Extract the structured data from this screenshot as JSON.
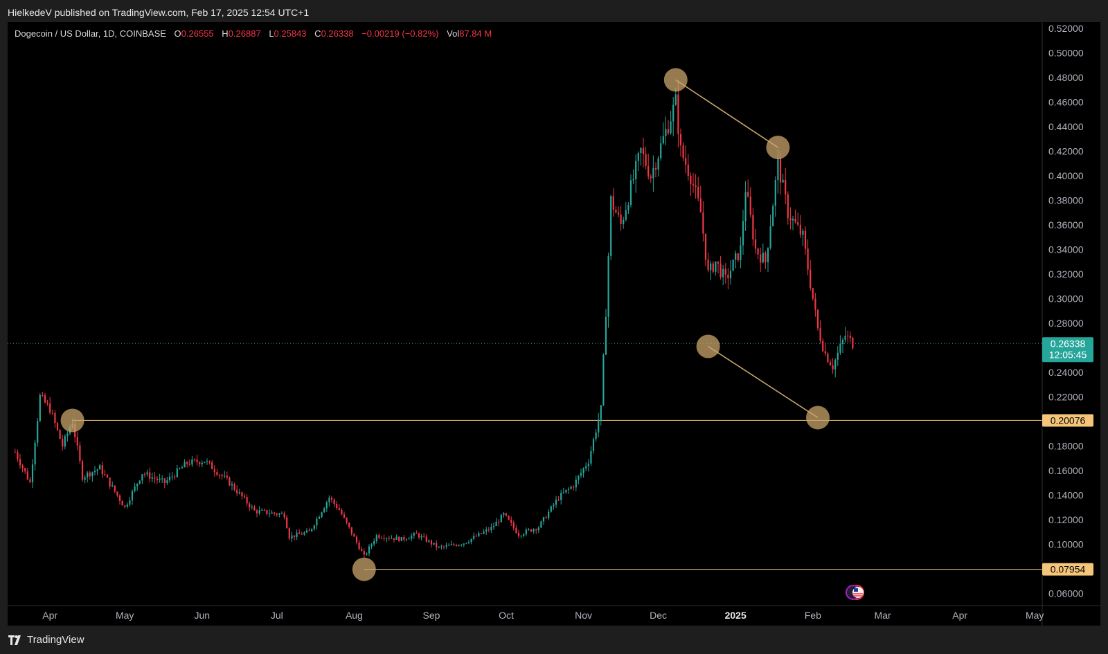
{
  "header": {
    "published_text": "HielkedeV published on TradingView.com, Feb 17, 2025 12:54 UTC+1"
  },
  "legend": {
    "symbol": "Dogecoin / US Dollar, 1D, COINBASE",
    "open_label": "O",
    "open_value": "0.26555",
    "high_label": "H",
    "high_value": "0.26887",
    "low_label": "L",
    "low_value": "0.25843",
    "close_label": "C",
    "close_value": "0.26338",
    "change_value": "−0.00219 (−0.82%)",
    "volume_label": "Vol",
    "volume_value": "87.84 M"
  },
  "footer": {
    "brand": "TradingView",
    "logo_icon": "tradingview-logo-icon"
  },
  "colors": {
    "up": "#26a69a",
    "down": "#f23645",
    "annotation": "#c9a46b",
    "level_line": "#e0b46a",
    "axis_text": "#b2b5be",
    "price_tag": "#26a69a",
    "level_tag": "#f5c57a"
  },
  "chart_data": {
    "type": "candlestick",
    "x_axis_labels": [
      "Apr",
      "May",
      "Jun",
      "Jul",
      "Aug",
      "Sep",
      "Oct",
      "Nov",
      "Dec",
      "2025",
      "Feb",
      "Mar",
      "Apr",
      "May"
    ],
    "y_axis_labels": [
      "0.52000",
      "0.50000",
      "0.48000",
      "0.46000",
      "0.44000",
      "0.42000",
      "0.40000",
      "0.38000",
      "0.36000",
      "0.34000",
      "0.32000",
      "0.30000",
      "0.28000",
      "0.26000",
      "0.24000",
      "0.22000",
      "0.20000",
      "0.18000",
      "0.16000",
      "0.14000",
      "0.12000",
      "0.10000",
      "0.08000",
      "0.06000"
    ],
    "ylim": [
      0.05,
      0.525
    ],
    "last_price": {
      "value": 0.26338,
      "label": "0.26338",
      "countdown": "12:05:45"
    },
    "levels": [
      {
        "value": 0.20076,
        "label": "0.20076"
      },
      {
        "value": 0.07954,
        "label": "0.07954"
      }
    ],
    "price_path": [
      [
        "2024-03-18",
        0.175
      ],
      [
        "2024-03-24",
        0.15
      ],
      [
        "2024-03-28",
        0.22
      ],
      [
        "2024-04-01",
        0.21
      ],
      [
        "2024-04-06",
        0.18
      ],
      [
        "2024-04-10",
        0.2
      ],
      [
        "2024-04-14",
        0.155
      ],
      [
        "2024-04-21",
        0.162
      ],
      [
        "2024-05-01",
        0.13
      ],
      [
        "2024-05-08",
        0.158
      ],
      [
        "2024-05-17",
        0.15
      ],
      [
        "2024-05-26",
        0.166
      ],
      [
        "2024-06-02",
        0.168
      ],
      [
        "2024-06-12",
        0.15
      ],
      [
        "2024-06-22",
        0.127
      ],
      [
        "2024-07-04",
        0.124
      ],
      [
        "2024-07-06",
        0.106
      ],
      [
        "2024-07-14",
        0.11
      ],
      [
        "2024-07-22",
        0.138
      ],
      [
        "2024-07-26",
        0.128
      ],
      [
        "2024-08-05",
        0.09
      ],
      [
        "2024-08-10",
        0.107
      ],
      [
        "2024-08-20",
        0.104
      ],
      [
        "2024-08-26",
        0.108
      ],
      [
        "2024-09-04",
        0.097
      ],
      [
        "2024-09-14",
        0.101
      ],
      [
        "2024-09-25",
        0.113
      ],
      [
        "2024-09-30",
        0.124
      ],
      [
        "2024-10-06",
        0.108
      ],
      [
        "2024-10-14",
        0.114
      ],
      [
        "2024-10-22",
        0.138
      ],
      [
        "2024-10-28",
        0.148
      ],
      [
        "2024-11-03",
        0.168
      ],
      [
        "2024-11-08",
        0.21
      ],
      [
        "2024-11-10",
        0.29
      ],
      [
        "2024-11-12",
        0.38
      ],
      [
        "2024-11-16",
        0.36
      ],
      [
        "2024-11-20",
        0.39
      ],
      [
        "2024-11-24",
        0.42
      ],
      [
        "2024-11-28",
        0.4
      ],
      [
        "2024-12-03",
        0.43
      ],
      [
        "2024-12-08",
        0.46
      ],
      [
        "2024-12-10",
        0.42
      ],
      [
        "2024-12-14",
        0.4
      ],
      [
        "2024-12-18",
        0.37
      ],
      [
        "2024-12-21",
        0.32
      ],
      [
        "2024-12-24",
        0.33
      ],
      [
        "2024-12-28",
        0.315
      ],
      [
        "2025-01-03",
        0.34
      ],
      [
        "2025-01-05",
        0.39
      ],
      [
        "2025-01-09",
        0.34
      ],
      [
        "2025-01-13",
        0.33
      ],
      [
        "2025-01-18",
        0.41
      ],
      [
        "2025-01-22",
        0.37
      ],
      [
        "2025-01-28",
        0.35
      ],
      [
        "2025-02-01",
        0.3
      ],
      [
        "2025-02-03",
        0.275
      ],
      [
        "2025-02-06",
        0.255
      ],
      [
        "2025-02-09",
        0.245
      ],
      [
        "2025-02-14",
        0.27
      ],
      [
        "2025-02-17",
        0.26338
      ]
    ],
    "annotations": {
      "circles": [
        {
          "date": "2024-04-10",
          "price": 0.20076
        },
        {
          "date": "2024-08-05",
          "price": 0.07954
        },
        {
          "date": "2024-12-08",
          "price": 0.478
        },
        {
          "date": "2025-01-18",
          "price": 0.423
        },
        {
          "date": "2024-12-21",
          "price": 0.261
        },
        {
          "date": "2025-02-03",
          "price": 0.203
        }
      ],
      "trendlines": [
        {
          "from": [
            "2024-12-08",
            0.478
          ],
          "to": [
            "2025-01-18",
            0.423
          ]
        },
        {
          "from": [
            "2024-12-21",
            0.261
          ],
          "to": [
            "2025-02-03",
            0.203
          ]
        }
      ]
    }
  }
}
